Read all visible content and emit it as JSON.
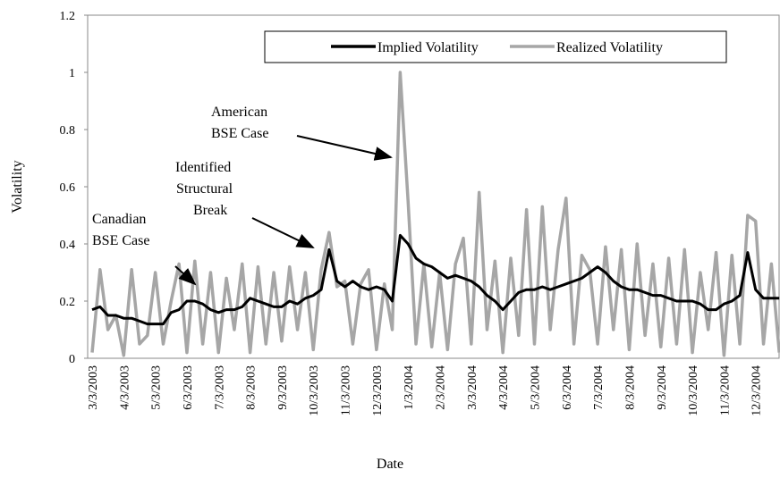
{
  "chart_data": {
    "type": "line",
    "x_label": "Date",
    "y_label": "Volatility",
    "categories": [
      "3/3/2003",
      null,
      null,
      null,
      "4/3/2003",
      null,
      null,
      null,
      "5/3/2003",
      null,
      null,
      null,
      "6/3/2003",
      null,
      null,
      null,
      "7/3/2003",
      null,
      null,
      null,
      "8/3/2003",
      null,
      null,
      null,
      "9/3/2003",
      null,
      null,
      null,
      "10/3/2003",
      null,
      null,
      null,
      "11/3/2003",
      null,
      null,
      null,
      "12/3/2003",
      null,
      null,
      null,
      "1/3/2004",
      null,
      null,
      null,
      "2/3/2004",
      null,
      null,
      null,
      "3/3/2004",
      null,
      null,
      null,
      "4/3/2004",
      null,
      null,
      null,
      "5/3/2004",
      null,
      null,
      null,
      "6/3/2004",
      null,
      null,
      null,
      "7/3/2004",
      null,
      null,
      null,
      "8/3/2004",
      null,
      null,
      null,
      "9/3/2004",
      null,
      null,
      null,
      "10/3/2004",
      null,
      null,
      null,
      "11/3/2004",
      null,
      null,
      null,
      "12/3/2004",
      null,
      null,
      null
    ],
    "series": [
      {
        "name": "Implied Volatility",
        "color": "#000000",
        "values": [
          0.17,
          0.18,
          0.15,
          0.15,
          0.14,
          0.14,
          0.13,
          0.12,
          0.12,
          0.12,
          0.16,
          0.17,
          0.2,
          0.2,
          0.19,
          0.17,
          0.16,
          0.17,
          0.17,
          0.18,
          0.21,
          0.2,
          0.19,
          0.18,
          0.18,
          0.2,
          0.19,
          0.21,
          0.22,
          0.24,
          0.38,
          0.27,
          0.25,
          0.27,
          0.25,
          0.24,
          0.25,
          0.24,
          0.2,
          0.43,
          0.4,
          0.35,
          0.33,
          0.32,
          0.3,
          0.28,
          0.29,
          0.28,
          0.27,
          0.25,
          0.22,
          0.2,
          0.17,
          0.2,
          0.23,
          0.24,
          0.24,
          0.25,
          0.24,
          0.25,
          0.26,
          0.27,
          0.28,
          0.3,
          0.32,
          0.3,
          0.27,
          0.25,
          0.24,
          0.24,
          0.23,
          0.22,
          0.22,
          0.21,
          0.2,
          0.2,
          0.2,
          0.19,
          0.17,
          0.17,
          0.19,
          0.2,
          0.22,
          0.37,
          0.24,
          0.21,
          0.21,
          0.21
        ]
      },
      {
        "name": "Realized Volatility",
        "color": "#a6a6a6",
        "values": [
          0.02,
          0.31,
          0.1,
          0.15,
          0.01,
          0.31,
          0.05,
          0.08,
          0.3,
          0.05,
          0.2,
          0.33,
          0.02,
          0.34,
          0.05,
          0.3,
          0.02,
          0.28,
          0.1,
          0.33,
          0.02,
          0.32,
          0.05,
          0.3,
          0.06,
          0.32,
          0.1,
          0.3,
          0.03,
          0.31,
          0.44,
          0.25,
          0.27,
          0.05,
          0.26,
          0.31,
          0.03,
          0.26,
          0.1,
          1.0,
          0.55,
          0.05,
          0.33,
          0.04,
          0.3,
          0.03,
          0.33,
          0.42,
          0.05,
          0.58,
          0.1,
          0.34,
          0.02,
          0.35,
          0.08,
          0.52,
          0.05,
          0.53,
          0.1,
          0.38,
          0.56,
          0.05,
          0.36,
          0.31,
          0.05,
          0.39,
          0.1,
          0.38,
          0.03,
          0.4,
          0.08,
          0.33,
          0.04,
          0.35,
          0.05,
          0.38,
          0.02,
          0.3,
          0.1,
          0.37,
          0.01,
          0.36,
          0.05,
          0.5,
          0.48,
          0.05,
          0.33,
          0.02
        ]
      }
    ],
    "ylim": [
      0,
      1.2
    ],
    "yticks": [
      0,
      0.2,
      0.4,
      0.6,
      0.8,
      1,
      1.2
    ],
    "grid": false,
    "legend": "top",
    "annotations": [
      {
        "lines": [
          "Canadian",
          "BSE Case"
        ]
      },
      {
        "lines": [
          "Identified",
          "Structural",
          "Break"
        ]
      },
      {
        "lines": [
          "American",
          "BSE Case"
        ]
      }
    ]
  }
}
